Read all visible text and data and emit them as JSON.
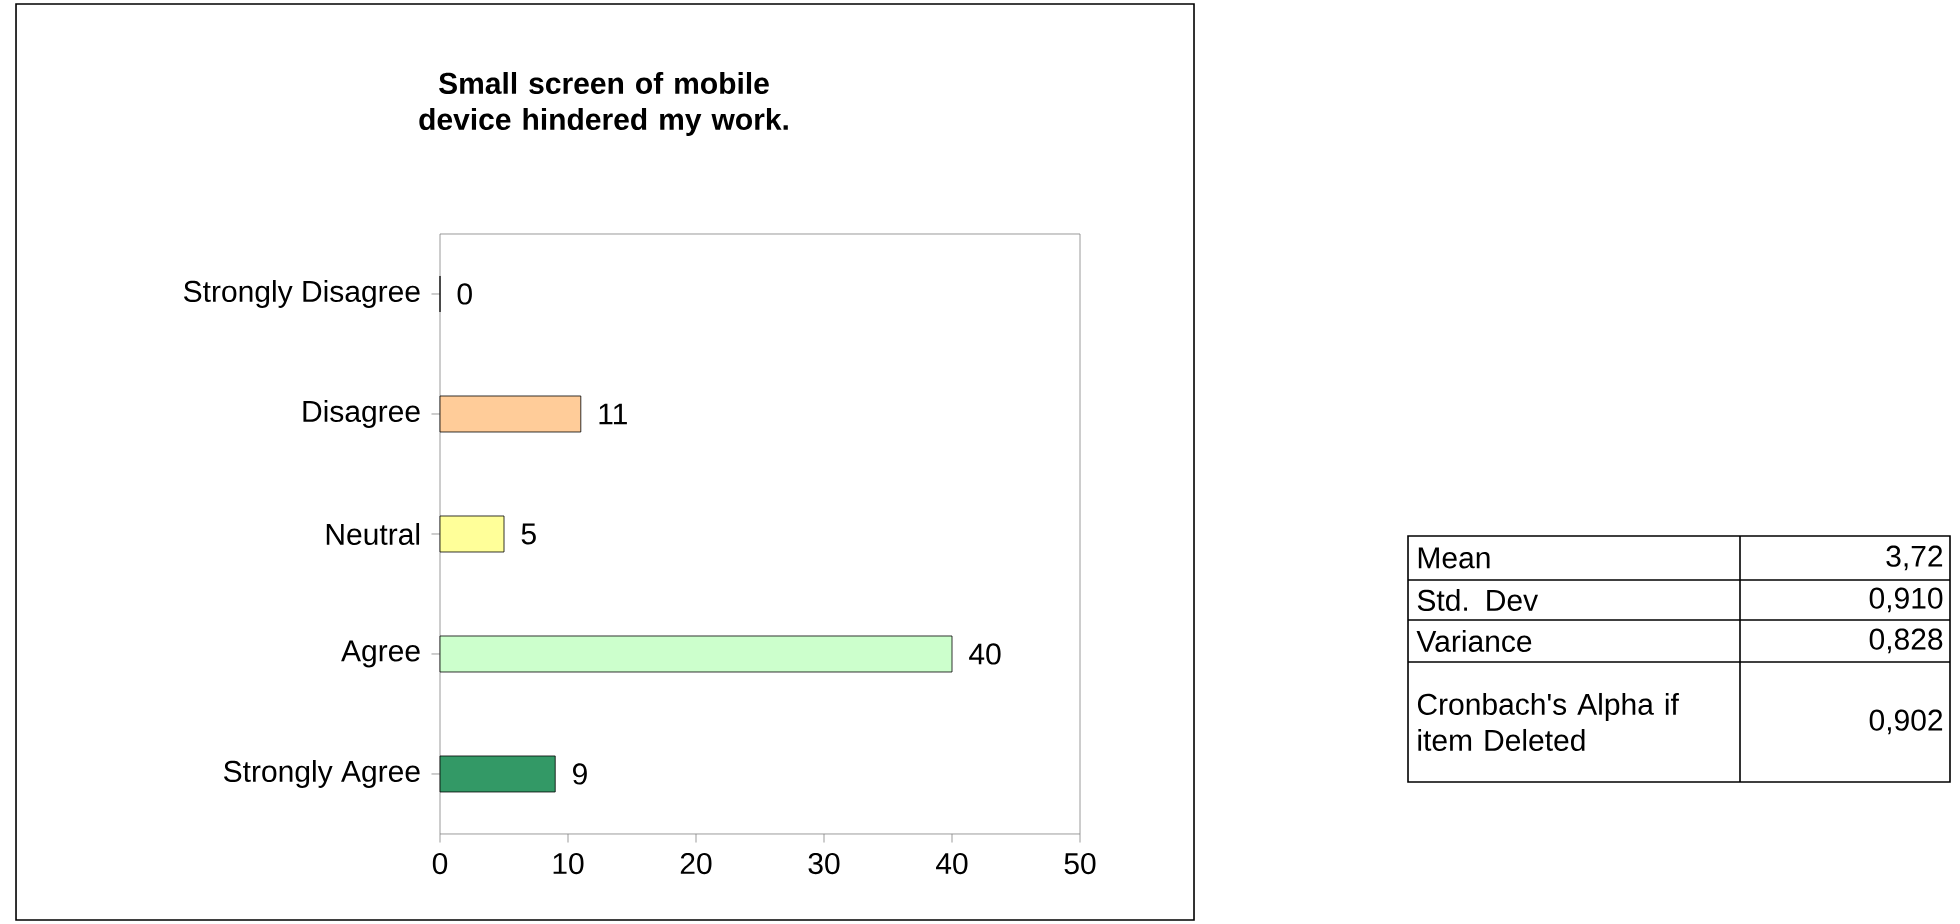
{
  "chart_data": {
    "type": "bar",
    "orientation": "horizontal",
    "title": "Small screen of mobile device hindered my work.",
    "categories": [
      "Strongly Disagree",
      "Disagree",
      "Neutral",
      "Agree",
      "Strongly Agree"
    ],
    "values": [
      0,
      11,
      5,
      40,
      9
    ],
    "colors": [
      "#9999ff",
      "#ffcc99",
      "#ffff99",
      "#ccffcc",
      "#339966"
    ],
    "xlim": [
      0,
      50
    ],
    "xticks": [
      0,
      10,
      20,
      30,
      40,
      50
    ],
    "data_labels": true,
    "grid": false,
    "annotations": [
      "Mean",
      "3,72",
      "Std. Dev",
      "0,910",
      "Variance",
      "0,828",
      "Cronbach's Alpha if item Deleted",
      "0,902"
    ]
  }
}
